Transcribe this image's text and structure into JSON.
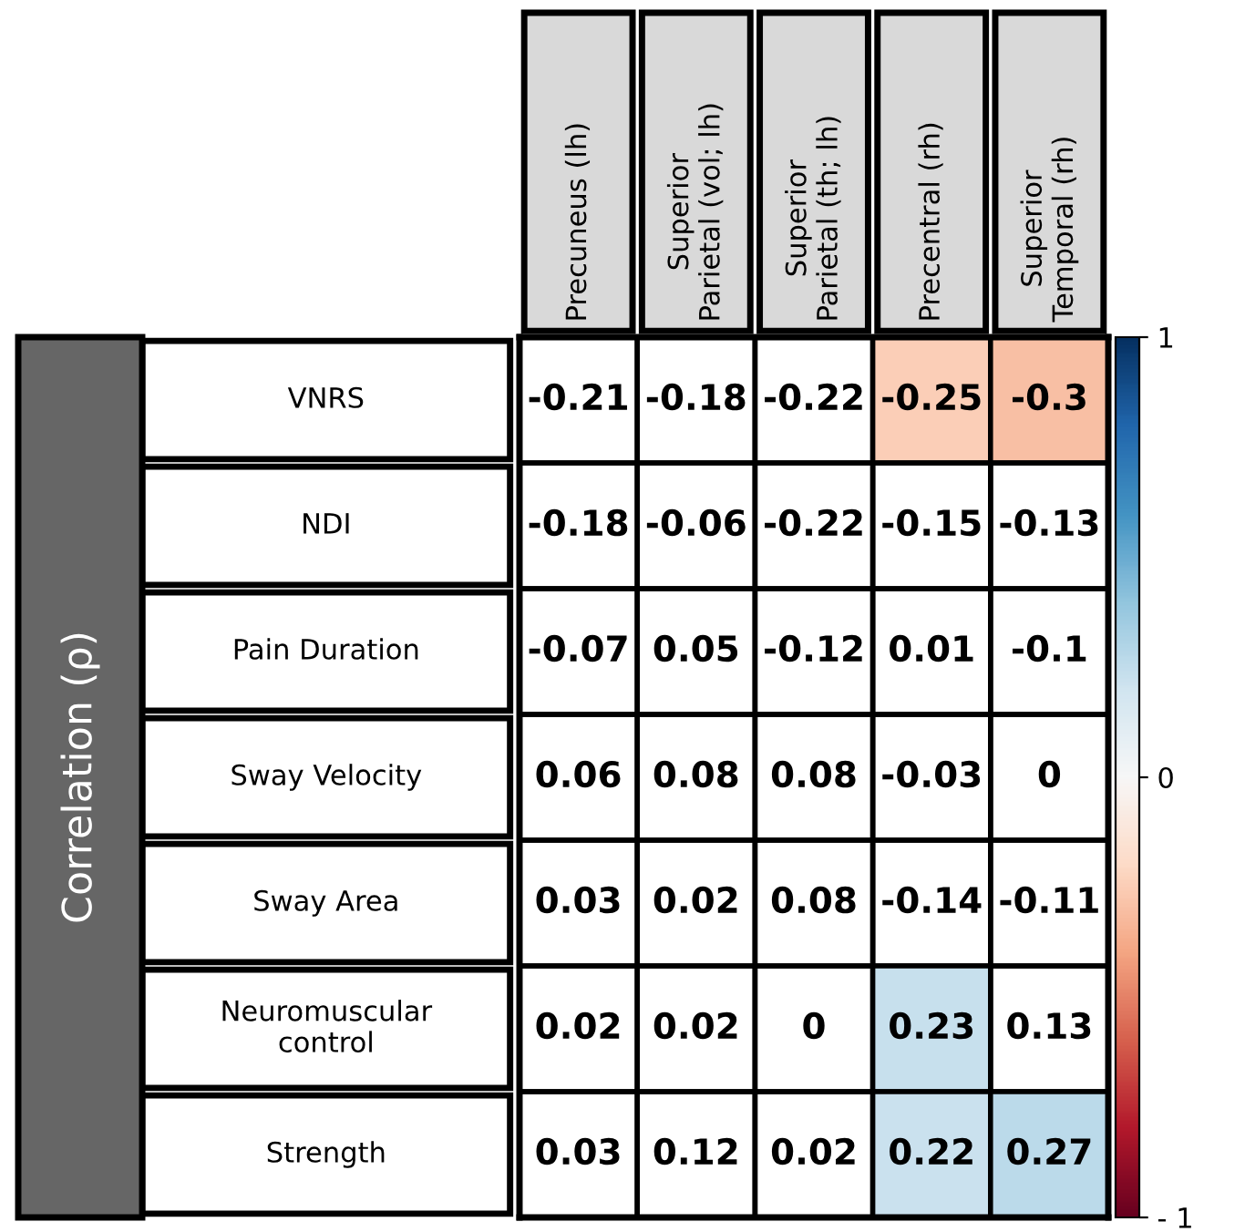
{
  "chart_data": {
    "type": "heatmap",
    "ylabel": "Correlation (ρ)",
    "categories": [
      "Precuneus (lh)",
      "Superior\nParietal (vol; lh)",
      "Superior\nParietal (th; lh)",
      "Precentral (rh)",
      "Superior\nTemporal (rh)"
    ],
    "y_categories": [
      "VNRS",
      "NDI",
      "Pain Duration",
      "Sway Velocity",
      "Sway Area",
      "Neuromuscular\ncontrol",
      "Strength"
    ],
    "cells": [
      [
        null,
        null,
        null,
        -0.25,
        -0.3
      ],
      [
        null,
        null,
        null,
        null,
        null
      ],
      [
        null,
        null,
        null,
        null,
        null
      ],
      [
        null,
        null,
        null,
        null,
        null
      ],
      [
        null,
        null,
        null,
        null,
        null
      ],
      [
        null,
        null,
        null,
        0.23,
        null
      ],
      [
        null,
        null,
        null,
        0.22,
        0.27
      ]
    ],
    "cell_labels": [
      [
        "-0.21",
        "-0.18",
        "-0.22",
        "-0.25",
        "-0.3"
      ],
      [
        "-0.18",
        "-0.06",
        "-0.22",
        "-0.15",
        "-0.13"
      ],
      [
        "-0.07",
        "0.05",
        "-0.12",
        "0.01",
        "-0.1"
      ],
      [
        "0.06",
        "0.08",
        "0.08",
        "-0.03",
        "0"
      ],
      [
        "0.03",
        "0.02",
        "0.08",
        "-0.14",
        "-0.11"
      ],
      [
        "0.02",
        "0.02",
        "0",
        "0.23",
        "0.13"
      ],
      [
        "0.03",
        "0.12",
        "0.02",
        "0.22",
        "0.27"
      ]
    ],
    "clim": [
      -1,
      1
    ],
    "cticks": [
      1,
      0,
      {
        "value": -1,
        "label": "- 1"
      }
    ]
  }
}
